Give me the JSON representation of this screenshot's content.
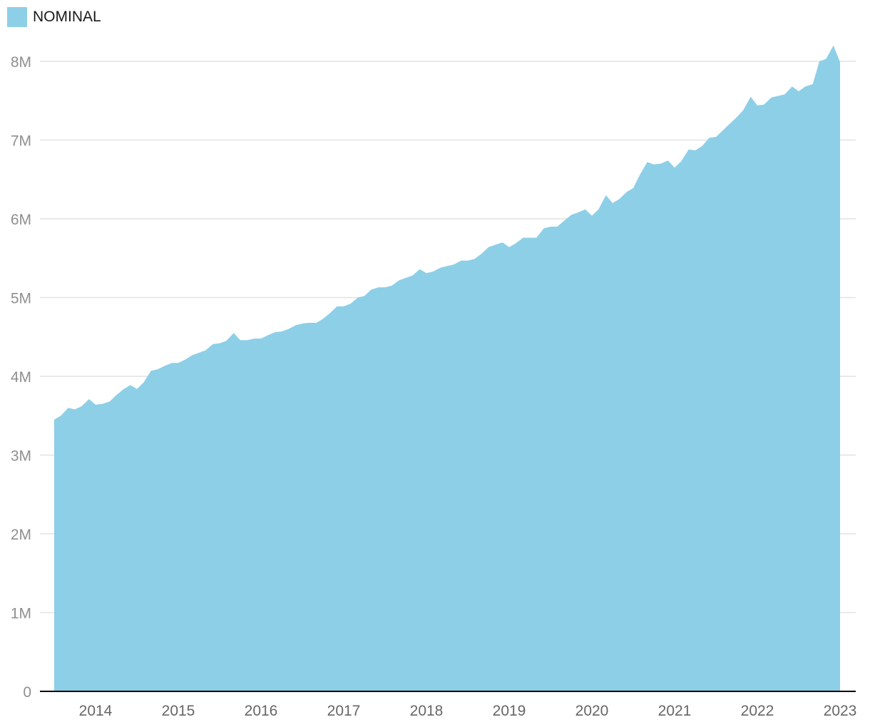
{
  "chart_data": {
    "type": "area",
    "title": "",
    "xlabel": "",
    "ylabel": "",
    "legend": {
      "placement": "top-left",
      "entries": [
        "NOMINAL"
      ]
    },
    "grid": true,
    "xlim": [
      2013.5,
      2023.0
    ],
    "ylim": [
      0,
      8000000
    ],
    "x_ticks": [
      "2014",
      "2015",
      "2016",
      "2017",
      "2018",
      "2019",
      "2020",
      "2021",
      "2022",
      "2023"
    ],
    "y_ticks": [
      "0",
      "1M",
      "2M",
      "3M",
      "4M",
      "5M",
      "6M",
      "7M",
      "8M"
    ],
    "series": [
      {
        "name": "NOMINAL",
        "color": "#8dcfe7",
        "x": [
          2013.5,
          2013.58,
          2013.67,
          2013.75,
          2013.83,
          2013.92,
          2014.0,
          2014.08,
          2014.17,
          2014.25,
          2014.33,
          2014.42,
          2014.5,
          2014.58,
          2014.67,
          2014.75,
          2014.83,
          2014.92,
          2015.0,
          2015.08,
          2015.17,
          2015.25,
          2015.33,
          2015.42,
          2015.5,
          2015.58,
          2015.67,
          2015.75,
          2015.83,
          2015.92,
          2016.0,
          2016.08,
          2016.17,
          2016.25,
          2016.33,
          2016.42,
          2016.5,
          2016.58,
          2016.67,
          2016.75,
          2016.83,
          2016.92,
          2017.0,
          2017.08,
          2017.17,
          2017.25,
          2017.33,
          2017.42,
          2017.5,
          2017.58,
          2017.67,
          2017.75,
          2017.83,
          2017.92,
          2018.0,
          2018.08,
          2018.17,
          2018.25,
          2018.33,
          2018.42,
          2018.5,
          2018.58,
          2018.67,
          2018.75,
          2018.83,
          2018.92,
          2019.0,
          2019.08,
          2019.17,
          2019.25,
          2019.33,
          2019.42,
          2019.5,
          2019.58,
          2019.67,
          2019.75,
          2019.83,
          2019.92,
          2020.0,
          2020.08,
          2020.17,
          2020.25,
          2020.33,
          2020.42,
          2020.5,
          2020.58,
          2020.67,
          2020.75,
          2020.83,
          2020.92,
          2021.0,
          2021.08,
          2021.17,
          2021.25,
          2021.33,
          2021.42,
          2021.5,
          2021.58,
          2021.67,
          2021.75,
          2021.83,
          2021.92,
          2022.0,
          2022.08,
          2022.17,
          2022.25,
          2022.33,
          2022.42,
          2022.5,
          2022.58,
          2022.67,
          2022.75,
          2022.83,
          2022.92,
          2023.0
        ],
        "values": [
          3450000,
          3500000,
          3600000,
          3580000,
          3620000,
          3710000,
          3640000,
          3650000,
          3680000,
          3760000,
          3830000,
          3890000,
          3840000,
          3920000,
          4070000,
          4090000,
          4130000,
          4170000,
          4170000,
          4210000,
          4270000,
          4300000,
          4330000,
          4410000,
          4420000,
          4450000,
          4550000,
          4460000,
          4460000,
          4480000,
          4480000,
          4520000,
          4560000,
          4570000,
          4600000,
          4650000,
          4670000,
          4680000,
          4680000,
          4730000,
          4800000,
          4890000,
          4890000,
          4920000,
          5000000,
          5020000,
          5100000,
          5130000,
          5130000,
          5150000,
          5220000,
          5250000,
          5280000,
          5360000,
          5310000,
          5330000,
          5380000,
          5400000,
          5420000,
          5470000,
          5470000,
          5490000,
          5560000,
          5640000,
          5670000,
          5700000,
          5640000,
          5690000,
          5760000,
          5760000,
          5760000,
          5880000,
          5900000,
          5900000,
          5980000,
          6050000,
          6080000,
          6120000,
          6040000,
          6120000,
          6300000,
          6200000,
          6250000,
          6340000,
          6390000,
          6560000,
          6720000,
          6690000,
          6700000,
          6740000,
          6650000,
          6730000,
          6880000,
          6870000,
          6920000,
          7030000,
          7040000,
          7120000,
          7210000,
          7290000,
          7380000,
          7550000,
          7440000,
          7450000,
          7540000,
          7560000,
          7580000,
          7680000,
          7620000,
          7680000,
          7710000,
          8000000,
          8030000,
          8200000,
          7990000
        ]
      }
    ]
  }
}
